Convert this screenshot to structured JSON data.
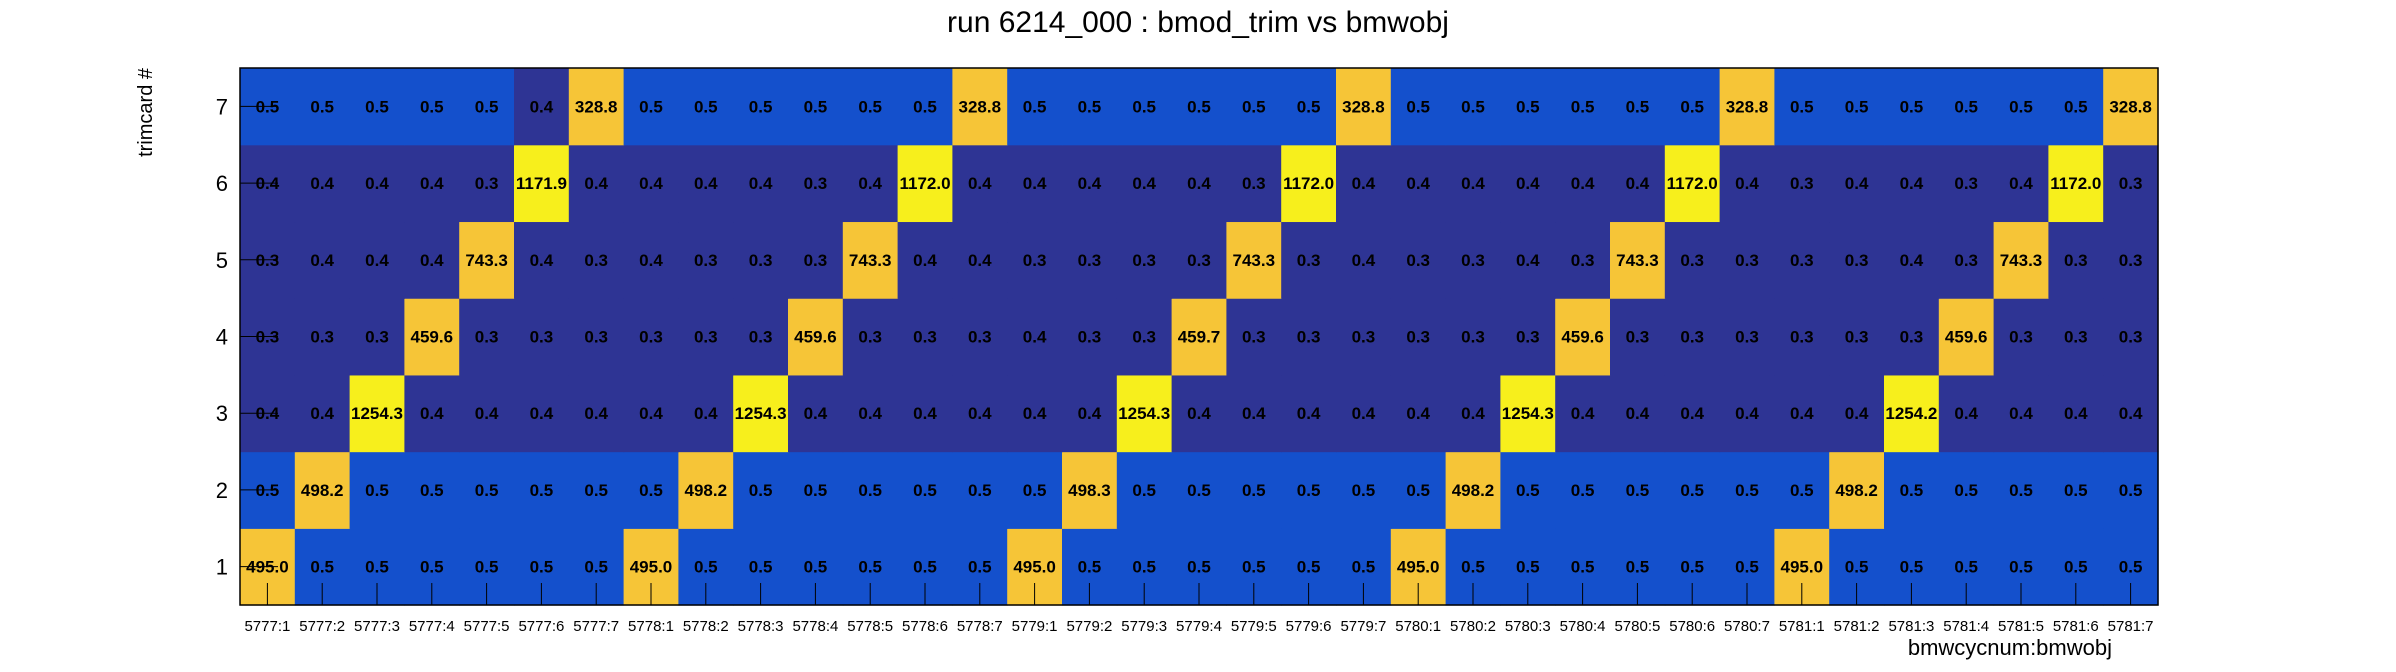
{
  "chart_data": {
    "type": "heatmap",
    "title": "run 6214_000 : bmod_trim vs bmwobj",
    "xlabel": "bmwcycnum:bmwobj",
    "ylabel": "trimcard #",
    "x_categories": [
      "5777:1",
      "5777:2",
      "5777:3",
      "5777:4",
      "5777:5",
      "5777:6",
      "5777:7",
      "5778:1",
      "5778:2",
      "5778:3",
      "5778:4",
      "5778:5",
      "5778:6",
      "5778:7",
      "5779:1",
      "5779:2",
      "5779:3",
      "5779:4",
      "5779:5",
      "5779:6",
      "5779:7",
      "5780:1",
      "5780:2",
      "5780:3",
      "5780:4",
      "5780:5",
      "5780:6",
      "5780:7",
      "5781:1",
      "5781:2",
      "5781:3",
      "5781:4",
      "5781:5",
      "5781:6",
      "5781:7"
    ],
    "y_categories": [
      "1",
      "2",
      "3",
      "4",
      "5",
      "6",
      "7"
    ],
    "values": [
      [
        "495.0",
        "0.5",
        "0.5",
        "0.5",
        "0.5",
        "0.5",
        "0.5",
        "495.0",
        "0.5",
        "0.5",
        "0.5",
        "0.5",
        "0.5",
        "0.5",
        "495.0",
        "0.5",
        "0.5",
        "0.5",
        "0.5",
        "0.5",
        "0.5",
        "495.0",
        "0.5",
        "0.5",
        "0.5",
        "0.5",
        "0.5",
        "0.5",
        "495.0",
        "0.5",
        "0.5",
        "0.5",
        "0.5",
        "0.5",
        "0.5"
      ],
      [
        "0.5",
        "498.2",
        "0.5",
        "0.5",
        "0.5",
        "0.5",
        "0.5",
        "0.5",
        "498.2",
        "0.5",
        "0.5",
        "0.5",
        "0.5",
        "0.5",
        "0.5",
        "498.3",
        "0.5",
        "0.5",
        "0.5",
        "0.5",
        "0.5",
        "0.5",
        "498.2",
        "0.5",
        "0.5",
        "0.5",
        "0.5",
        "0.5",
        "0.5",
        "498.2",
        "0.5",
        "0.5",
        "0.5",
        "0.5",
        "0.5"
      ],
      [
        "0.4",
        "0.4",
        "1254.3",
        "0.4",
        "0.4",
        "0.4",
        "0.4",
        "0.4",
        "0.4",
        "1254.3",
        "0.4",
        "0.4",
        "0.4",
        "0.4",
        "0.4",
        "0.4",
        "1254.3",
        "0.4",
        "0.4",
        "0.4",
        "0.4",
        "0.4",
        "0.4",
        "1254.3",
        "0.4",
        "0.4",
        "0.4",
        "0.4",
        "0.4",
        "0.4",
        "1254.2",
        "0.4",
        "0.4",
        "0.4",
        "0.4"
      ],
      [
        "0.3",
        "0.3",
        "0.3",
        "459.6",
        "0.3",
        "0.3",
        "0.3",
        "0.3",
        "0.3",
        "0.3",
        "459.6",
        "0.3",
        "0.3",
        "0.3",
        "0.4",
        "0.3",
        "0.3",
        "459.7",
        "0.3",
        "0.3",
        "0.3",
        "0.3",
        "0.3",
        "0.3",
        "459.6",
        "0.3",
        "0.3",
        "0.3",
        "0.3",
        "0.3",
        "0.3",
        "459.6",
        "0.3",
        "0.3",
        "0.3"
      ],
      [
        "0.3",
        "0.4",
        "0.4",
        "0.4",
        "743.3",
        "0.4",
        "0.3",
        "0.4",
        "0.3",
        "0.3",
        "0.3",
        "743.3",
        "0.4",
        "0.4",
        "0.3",
        "0.3",
        "0.3",
        "0.3",
        "743.3",
        "0.3",
        "0.4",
        "0.3",
        "0.3",
        "0.4",
        "0.3",
        "743.3",
        "0.3",
        "0.3",
        "0.3",
        "0.3",
        "0.4",
        "0.3",
        "743.3",
        "0.3",
        "0.3"
      ],
      [
        "0.4",
        "0.4",
        "0.4",
        "0.4",
        "0.3",
        "1171.9",
        "0.4",
        "0.4",
        "0.4",
        "0.4",
        "0.3",
        "0.4",
        "1172.0",
        "0.4",
        "0.4",
        "0.4",
        "0.4",
        "0.4",
        "0.3",
        "1172.0",
        "0.4",
        "0.4",
        "0.4",
        "0.4",
        "0.4",
        "0.4",
        "1172.0",
        "0.4",
        "0.3",
        "0.4",
        "0.4",
        "0.3",
        "0.4",
        "1172.0",
        "0.3"
      ],
      [
        "0.5",
        "0.5",
        "0.5",
        "0.5",
        "0.5",
        "0.4",
        "328.8",
        "0.5",
        "0.5",
        "0.5",
        "0.5",
        "0.5",
        "0.5",
        "328.8",
        "0.5",
        "0.5",
        "0.5",
        "0.5",
        "0.5",
        "0.5",
        "328.8",
        "0.5",
        "0.5",
        "0.5",
        "0.5",
        "0.5",
        "0.5",
        "328.8",
        "0.5",
        "0.5",
        "0.5",
        "0.5",
        "0.5",
        "0.5",
        "328.8"
      ]
    ],
    "colors": {
      "low": "#2e3494",
      "mid_low": "#1450cc",
      "mid_high": "#f6c537",
      "high": "#f7ef1c",
      "text": "#000000",
      "axis": "#000000"
    },
    "legend": "none",
    "grid": false
  }
}
